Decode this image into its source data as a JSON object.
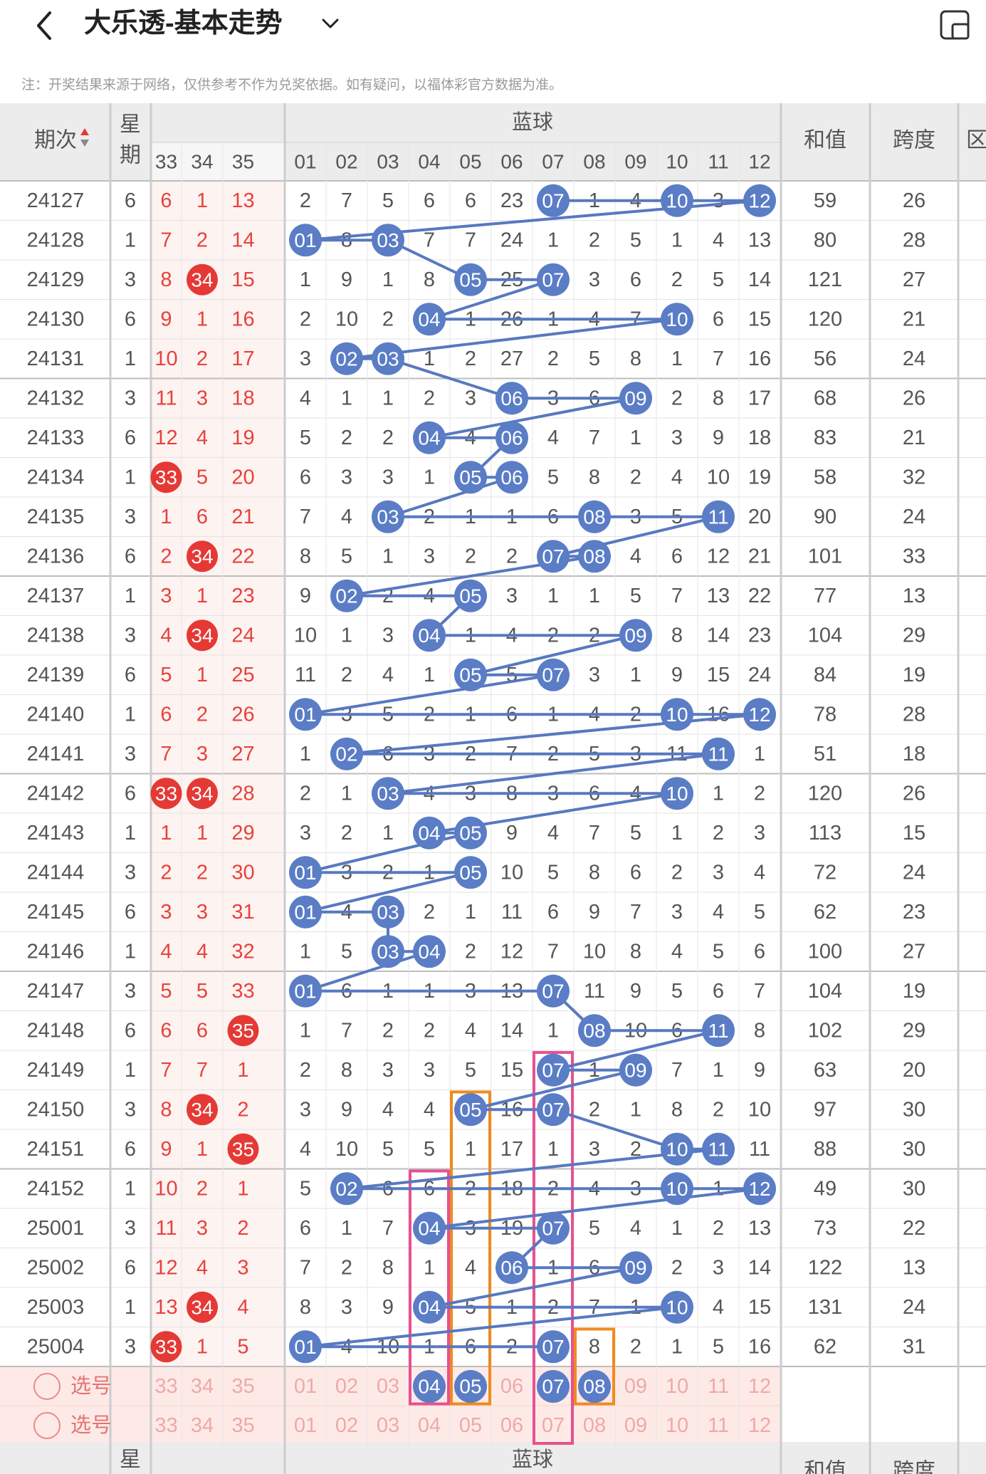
{
  "app": {
    "title": "大乐透-基本走势",
    "notice": "注：开奖结果来源于网络，仅供参考不作为兑奖依据。如有疑问，以福体彩官方数据为准。"
  },
  "header": {
    "period_label": "期次",
    "week_label": "星期",
    "blue_label": "蓝球",
    "sum_label": "和值",
    "span_label": "跨度",
    "partial_label": "区",
    "red_cols": [
      "33",
      "34",
      "35"
    ],
    "blue_cols": [
      "01",
      "02",
      "03",
      "04",
      "05",
      "06",
      "07",
      "08",
      "09",
      "10",
      "11",
      "12"
    ]
  },
  "rows": [
    {
      "period": "24127",
      "week": "6",
      "red": [
        "6",
        "1",
        "13"
      ],
      "blue": [
        "2",
        "7",
        "5",
        "6",
        "6",
        "23",
        "07",
        "1",
        "4",
        "10",
        "3",
        "12"
      ],
      "sum": "59",
      "span": "26"
    },
    {
      "period": "24128",
      "week": "1",
      "red": [
        "7",
        "2",
        "14"
      ],
      "blue": [
        "01",
        "8",
        "03",
        "7",
        "7",
        "24",
        "1",
        "2",
        "5",
        "1",
        "4",
        "13"
      ],
      "sum": "80",
      "span": "28"
    },
    {
      "period": "24129",
      "week": "3",
      "red": [
        "8",
        "34",
        "15"
      ],
      "blue": [
        "1",
        "9",
        "1",
        "8",
        "05",
        "25",
        "07",
        "3",
        "6",
        "2",
        "5",
        "14"
      ],
      "sum": "121",
      "span": "27"
    },
    {
      "period": "24130",
      "week": "6",
      "red": [
        "9",
        "1",
        "16"
      ],
      "blue": [
        "2",
        "10",
        "2",
        "04",
        "1",
        "26",
        "1",
        "4",
        "7",
        "10",
        "6",
        "15"
      ],
      "sum": "120",
      "span": "21"
    },
    {
      "period": "24131",
      "week": "1",
      "red": [
        "10",
        "2",
        "17"
      ],
      "blue": [
        "3",
        "02",
        "03",
        "1",
        "2",
        "27",
        "2",
        "5",
        "8",
        "1",
        "7",
        "16"
      ],
      "sum": "56",
      "span": "24"
    },
    {
      "period": "24132",
      "week": "3",
      "red": [
        "11",
        "3",
        "18"
      ],
      "blue": [
        "4",
        "1",
        "1",
        "2",
        "3",
        "06",
        "3",
        "6",
        "09",
        "2",
        "8",
        "17"
      ],
      "sum": "68",
      "span": "26"
    },
    {
      "period": "24133",
      "week": "6",
      "red": [
        "12",
        "4",
        "19"
      ],
      "blue": [
        "5",
        "2",
        "2",
        "04",
        "4",
        "06",
        "4",
        "7",
        "1",
        "3",
        "9",
        "18"
      ],
      "sum": "83",
      "span": "21"
    },
    {
      "period": "24134",
      "week": "1",
      "red": [
        "33",
        "5",
        "20"
      ],
      "blue": [
        "6",
        "3",
        "3",
        "1",
        "05",
        "06",
        "5",
        "8",
        "2",
        "4",
        "10",
        "19"
      ],
      "sum": "58",
      "span": "32"
    },
    {
      "period": "24135",
      "week": "3",
      "red": [
        "1",
        "6",
        "21"
      ],
      "blue": [
        "7",
        "4",
        "03",
        "2",
        "1",
        "1",
        "6",
        "08",
        "3",
        "5",
        "11",
        "20"
      ],
      "sum": "90",
      "span": "24"
    },
    {
      "period": "24136",
      "week": "6",
      "red": [
        "2",
        "34",
        "22"
      ],
      "blue": [
        "8",
        "5",
        "1",
        "3",
        "2",
        "2",
        "07",
        "08",
        "4",
        "6",
        "12",
        "21"
      ],
      "sum": "101",
      "span": "33"
    },
    {
      "period": "24137",
      "week": "1",
      "red": [
        "3",
        "1",
        "23"
      ],
      "blue": [
        "9",
        "02",
        "2",
        "4",
        "05",
        "3",
        "1",
        "1",
        "5",
        "7",
        "13",
        "22"
      ],
      "sum": "77",
      "span": "13"
    },
    {
      "period": "24138",
      "week": "3",
      "red": [
        "4",
        "34",
        "24"
      ],
      "blue": [
        "10",
        "1",
        "3",
        "04",
        "1",
        "4",
        "2",
        "2",
        "09",
        "8",
        "14",
        "23"
      ],
      "sum": "104",
      "span": "29"
    },
    {
      "period": "24139",
      "week": "6",
      "red": [
        "5",
        "1",
        "25"
      ],
      "blue": [
        "11",
        "2",
        "4",
        "1",
        "05",
        "5",
        "07",
        "3",
        "1",
        "9",
        "15",
        "24"
      ],
      "sum": "84",
      "span": "19"
    },
    {
      "period": "24140",
      "week": "1",
      "red": [
        "6",
        "2",
        "26"
      ],
      "blue": [
        "01",
        "3",
        "5",
        "2",
        "1",
        "6",
        "1",
        "4",
        "2",
        "10",
        "16",
        "12"
      ],
      "sum": "78",
      "span": "28"
    },
    {
      "period": "24141",
      "week": "3",
      "red": [
        "7",
        "3",
        "27"
      ],
      "blue": [
        "1",
        "02",
        "6",
        "3",
        "2",
        "7",
        "2",
        "5",
        "3",
        "11",
        "11",
        "1"
      ],
      "sum": "51",
      "span": "18"
    },
    {
      "period": "24142",
      "week": "6",
      "red": [
        "33",
        "34",
        "28"
      ],
      "blue": [
        "2",
        "1",
        "03",
        "4",
        "3",
        "8",
        "3",
        "6",
        "4",
        "10",
        "1",
        "2"
      ],
      "sum": "120",
      "span": "26"
    },
    {
      "period": "24143",
      "week": "1",
      "red": [
        "1",
        "1",
        "29"
      ],
      "blue": [
        "3",
        "2",
        "1",
        "04",
        "05",
        "9",
        "4",
        "7",
        "5",
        "1",
        "2",
        "3"
      ],
      "sum": "113",
      "span": "15"
    },
    {
      "period": "24144",
      "week": "3",
      "red": [
        "2",
        "2",
        "30"
      ],
      "blue": [
        "01",
        "3",
        "2",
        "1",
        "05",
        "10",
        "5",
        "8",
        "6",
        "2",
        "3",
        "4"
      ],
      "sum": "72",
      "span": "24"
    },
    {
      "period": "24145",
      "week": "6",
      "red": [
        "3",
        "3",
        "31"
      ],
      "blue": [
        "01",
        "4",
        "03",
        "2",
        "1",
        "11",
        "6",
        "9",
        "7",
        "3",
        "4",
        "5"
      ],
      "sum": "62",
      "span": "23"
    },
    {
      "period": "24146",
      "week": "1",
      "red": [
        "4",
        "4",
        "32"
      ],
      "blue": [
        "1",
        "5",
        "03",
        "04",
        "2",
        "12",
        "7",
        "10",
        "8",
        "4",
        "5",
        "6"
      ],
      "sum": "100",
      "span": "27"
    },
    {
      "period": "24147",
      "week": "3",
      "red": [
        "5",
        "5",
        "33"
      ],
      "blue": [
        "01",
        "6",
        "1",
        "1",
        "3",
        "13",
        "07",
        "11",
        "9",
        "5",
        "6",
        "7"
      ],
      "sum": "104",
      "span": "19"
    },
    {
      "period": "24148",
      "week": "6",
      "red": [
        "6",
        "6",
        "35"
      ],
      "blue": [
        "1",
        "7",
        "2",
        "2",
        "4",
        "14",
        "1",
        "08",
        "10",
        "6",
        "11",
        "8"
      ],
      "sum": "102",
      "span": "29"
    },
    {
      "period": "24149",
      "week": "1",
      "red": [
        "7",
        "7",
        "1"
      ],
      "blue": [
        "2",
        "8",
        "3",
        "3",
        "5",
        "15",
        "07",
        "1",
        "09",
        "7",
        "1",
        "9"
      ],
      "sum": "63",
      "span": "20"
    },
    {
      "period": "24150",
      "week": "3",
      "red": [
        "8",
        "34",
        "2"
      ],
      "blue": [
        "3",
        "9",
        "4",
        "4",
        "05",
        "16",
        "07",
        "2",
        "1",
        "8",
        "2",
        "10"
      ],
      "sum": "97",
      "span": "30"
    },
    {
      "period": "24151",
      "week": "6",
      "red": [
        "9",
        "1",
        "35"
      ],
      "blue": [
        "4",
        "10",
        "5",
        "5",
        "1",
        "17",
        "1",
        "3",
        "2",
        "10",
        "11",
        "11"
      ],
      "sum": "88",
      "span": "30"
    },
    {
      "period": "24152",
      "week": "1",
      "red": [
        "10",
        "2",
        "1"
      ],
      "blue": [
        "5",
        "02",
        "6",
        "6",
        "2",
        "18",
        "2",
        "4",
        "3",
        "10",
        "1",
        "12"
      ],
      "sum": "49",
      "span": "30"
    },
    {
      "period": "25001",
      "week": "3",
      "red": [
        "11",
        "3",
        "2"
      ],
      "blue": [
        "6",
        "1",
        "7",
        "04",
        "3",
        "19",
        "07",
        "5",
        "4",
        "1",
        "2",
        "13"
      ],
      "sum": "73",
      "span": "22"
    },
    {
      "period": "25002",
      "week": "6",
      "red": [
        "12",
        "4",
        "3"
      ],
      "blue": [
        "7",
        "2",
        "8",
        "1",
        "4",
        "06",
        "1",
        "6",
        "09",
        "2",
        "3",
        "14"
      ],
      "sum": "122",
      "span": "13"
    },
    {
      "period": "25003",
      "week": "1",
      "red": [
        "13",
        "34",
        "4"
      ],
      "blue": [
        "8",
        "3",
        "9",
        "04",
        "5",
        "1",
        "2",
        "7",
        "1",
        "10",
        "4",
        "15"
      ],
      "sum": "131",
      "span": "24"
    },
    {
      "period": "25004",
      "week": "3",
      "red": [
        "33",
        "1",
        "5"
      ],
      "blue": [
        "01",
        "4",
        "10",
        "1",
        "6",
        "2",
        "07",
        "8",
        "2",
        "1",
        "5",
        "16"
      ],
      "sum": "62",
      "span": "31"
    }
  ],
  "select_rows": [
    {
      "label": "选号",
      "red": [
        "33",
        "34",
        "35"
      ],
      "blue": [
        "01",
        "02",
        "03",
        "04",
        "05",
        "06",
        "07",
        "08",
        "09",
        "10",
        "11",
        "12"
      ],
      "selected": [
        "04",
        "05",
        "07",
        "08"
      ]
    },
    {
      "label": "选号",
      "red": [
        "33",
        "34",
        "35"
      ],
      "blue": [
        "01",
        "02",
        "03",
        "04",
        "05",
        "06",
        "07",
        "08",
        "09",
        "10",
        "11",
        "12"
      ],
      "selected": []
    }
  ],
  "footer": {
    "week_label": "星",
    "blue_label": "蓝球",
    "sum_label": "和值",
    "span_label": "跨度"
  },
  "colors": {
    "red_text": "#e8413c",
    "red_ball": "#e53935",
    "blue_ball": "#5a7dc6",
    "line": "#5878c0",
    "header_bg": "#ececec",
    "select_bg": "#fdeae6",
    "pink_box": "#e65191",
    "orange_box": "#f08a1e"
  },
  "icons": {
    "back": "chevron-left-icon",
    "dropdown": "chevron-down-icon",
    "device": "device-icon",
    "radio": "radio-icon",
    "sort": "sort-icon"
  }
}
